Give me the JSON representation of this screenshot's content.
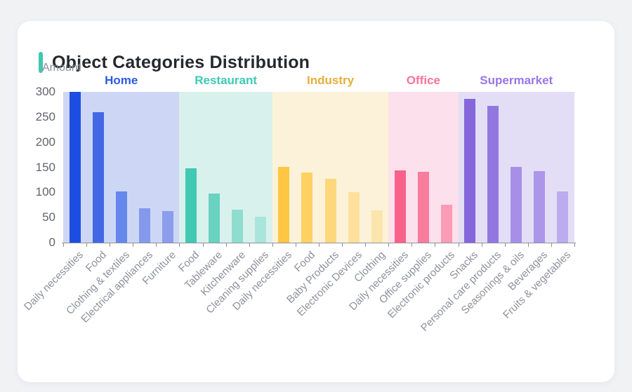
{
  "card": {
    "title": "Object Categories Distribution",
    "accent_color": "#41c6b0"
  },
  "chart_data": {
    "type": "bar",
    "title": "Object Categories Distribution",
    "xlabel": "",
    "ylabel": "Amount",
    "ylim": [
      0,
      300
    ],
    "yticks": [
      0,
      50,
      100,
      150,
      200,
      250,
      300
    ],
    "grid": false,
    "legend_position": "none",
    "x_tick_rotation_deg": 45,
    "groups": [
      {
        "name": "Home",
        "label_color": "#2b5be3",
        "band_color": "#cdd7f5",
        "bar_colors": [
          "#1c4fe1",
          "#4268e6",
          "#6687eb",
          "#8499ec",
          "#8a9eed"
        ],
        "categories": [
          "Daily necessities",
          "Food",
          "Clothing & textiles",
          "Electrical appliances",
          "Furniture"
        ],
        "values": [
          300,
          259,
          102,
          68,
          63
        ]
      },
      {
        "name": "Restaurant",
        "label_color": "#3ec9b4",
        "band_color": "#d9f1ed",
        "bar_colors": [
          "#41c9b3",
          "#69d2c1",
          "#8fddcf",
          "#a9e5da"
        ],
        "categories": [
          "Food",
          "Tableware",
          "Kitchenware",
          "Cleaning supplies"
        ],
        "values": [
          148,
          97,
          66,
          52
        ]
      },
      {
        "name": "Industry",
        "label_color": "#e6ae3c",
        "band_color": "#fcf2d9",
        "bar_colors": [
          "#fec643",
          "#fed161",
          "#fdd77c",
          "#fee09c",
          "#fce5ac"
        ],
        "categories": [
          "Daily necessities",
          "Food",
          "Baby Products",
          "Electronic Devices",
          "Clothing"
        ],
        "values": [
          151,
          139,
          127,
          100,
          64
        ]
      },
      {
        "name": "Office",
        "label_color": "#f9739a",
        "band_color": "#fce0eb",
        "bar_colors": [
          "#f8618c",
          "#f87c9d",
          "#fa9cb5"
        ],
        "categories": [
          "Daily necessities",
          "Office supplies",
          "Electronic products"
        ],
        "values": [
          144,
          141,
          76
        ]
      },
      {
        "name": "Supermarket",
        "label_color": "#9577e8",
        "band_color": "#e3def6",
        "bar_colors": [
          "#8566db",
          "#9377e0",
          "#a78fe7",
          "#ac96e9",
          "#bcabef"
        ],
        "categories": [
          "Snacks",
          "Personal care products",
          "Seasonings & oils",
          "Beverages",
          "Fruits & vegetables"
        ],
        "values": [
          286,
          272,
          150,
          142,
          102
        ]
      }
    ]
  }
}
